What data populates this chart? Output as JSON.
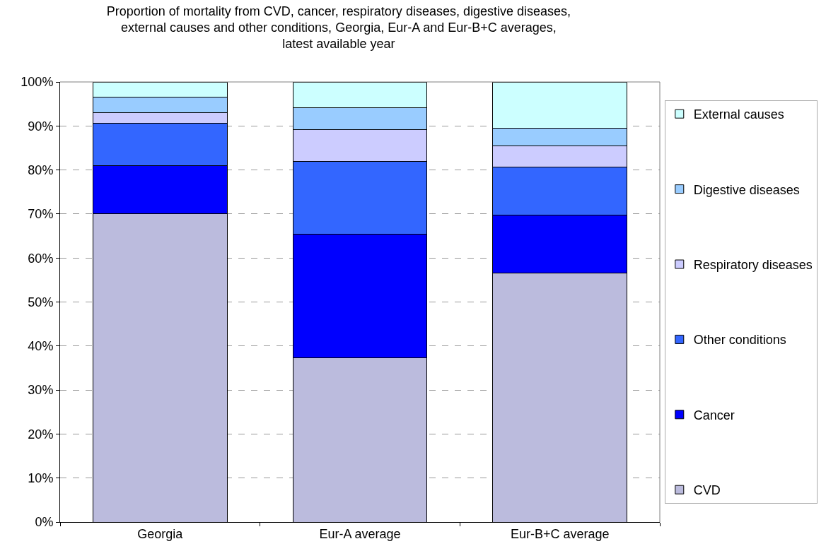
{
  "chart_data": {
    "type": "bar",
    "stacked": true,
    "title": "Proportion of mortality from CVD, cancer, respiratory diseases, digestive diseases,\nexternal causes and other conditions, Georgia, Eur-A and Eur-B+C averages,\nlatest available year",
    "categories": [
      "Georgia",
      "Eur-A average",
      "Eur-B+C average"
    ],
    "series": [
      {
        "name": "CVD",
        "color": "#bbbbdd",
        "values": [
          70.0,
          37.4,
          56.6
        ]
      },
      {
        "name": "Cancer",
        "color": "#0000ff",
        "values": [
          11.0,
          28.0,
          13.2
        ]
      },
      {
        "name": "Other conditions",
        "color": "#3366ff",
        "values": [
          9.6,
          16.5,
          10.8
        ]
      },
      {
        "name": "Respiratory diseases",
        "color": "#ccccff",
        "values": [
          2.4,
          7.3,
          4.8
        ]
      },
      {
        "name": "Digestive diseases",
        "color": "#99ccff",
        "values": [
          3.5,
          4.9,
          4.1
        ]
      },
      {
        "name": "External causes",
        "color": "#ccffff",
        "values": [
          3.5,
          5.9,
          10.5
        ]
      }
    ],
    "ylim": [
      0,
      100
    ],
    "yticks": [
      {
        "value": 0,
        "label": "0%"
      },
      {
        "value": 10,
        "label": "10%"
      },
      {
        "value": 20,
        "label": "20%"
      },
      {
        "value": 30,
        "label": "30%"
      },
      {
        "value": 40,
        "label": "40%"
      },
      {
        "value": 50,
        "label": "50%"
      },
      {
        "value": 60,
        "label": "60%"
      },
      {
        "value": 70,
        "label": "70%"
      },
      {
        "value": 80,
        "label": "80%"
      },
      {
        "value": 90,
        "label": "90%"
      },
      {
        "value": 100,
        "label": "100%"
      }
    ],
    "grid": "y",
    "legend": "right"
  }
}
